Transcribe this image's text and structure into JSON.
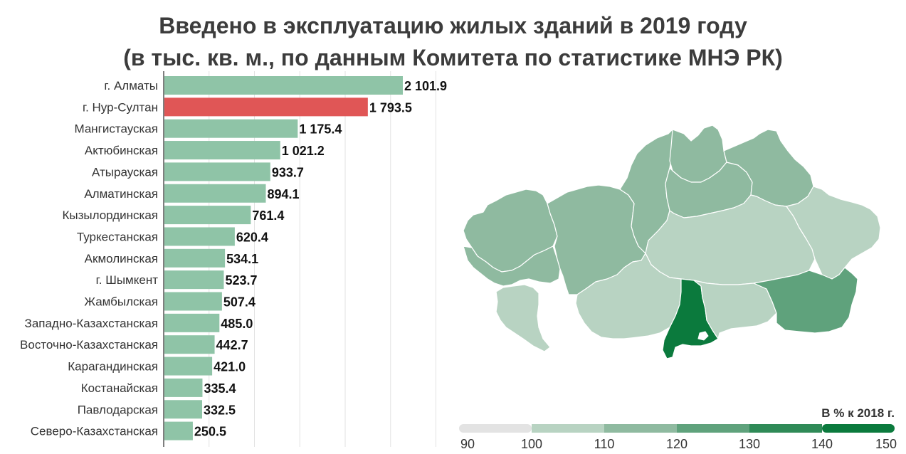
{
  "title_line1": "Введено в эксплуатацию жилых зданий в 2019 году",
  "title_line2": "(в тыс. кв. м., по данным Комитета по статистике МНЭ РК)",
  "chart_data": {
    "type": "bar",
    "orientation": "horizontal",
    "categories": [
      "г. Алматы",
      "г. Нур-Султан",
      "Мангистауская",
      "Актюбинская",
      "Атырауская",
      "Алматинская",
      "Кызылординская",
      "Туркестанская",
      "Акмолинская",
      "г. Шымкент",
      "Жамбылская",
      "Западно-Казахстанская",
      "Восточно-Казахстанская",
      "Карагандинская",
      "Костанайская",
      "Павлодарская",
      "Северо-Казахстанская"
    ],
    "values": [
      2101.9,
      1793.5,
      1175.4,
      1021.2,
      933.7,
      894.1,
      761.4,
      620.4,
      534.1,
      523.7,
      507.4,
      485.0,
      442.7,
      421.0,
      335.4,
      332.5,
      250.5
    ],
    "value_labels": [
      "2 101.9",
      "1 793.5",
      "1 175.4",
      "1 021.2",
      "933.7",
      "894.1",
      "761.4",
      "620.4",
      "534.1",
      "523.7",
      "507.4",
      "485.0",
      "442.7",
      "421.0",
      "335.4",
      "332.5",
      "250.5"
    ],
    "highlight_index": 1,
    "bar_color": "#8fc4a7",
    "highlight_color": "#e05656",
    "xlim": [
      0,
      2400
    ],
    "grid": true
  },
  "legend": {
    "title": "В % к 2018 г.",
    "ticks": [
      "90",
      "100",
      "110",
      "120",
      "130",
      "140",
      "150"
    ],
    "colors": [
      "#e3e3e3",
      "#b8d3c2",
      "#8fbaa0",
      "#5fa27c",
      "#2f8a57",
      "#0b7a3d"
    ]
  },
  "map": {
    "regions": [
      {
        "name": "Западно-Казахстанская",
        "color": "#8fbaa0"
      },
      {
        "name": "Атырауская",
        "color": "#8fbaa0"
      },
      {
        "name": "Мангистауская",
        "color": "#b8d3c2"
      },
      {
        "name": "Актюбинская",
        "color": "#8fbaa0"
      },
      {
        "name": "Костанайская",
        "color": "#8fbaa0"
      },
      {
        "name": "Северо-Казахстанская",
        "color": "#8fbaa0"
      },
      {
        "name": "Акмолинская",
        "color": "#8fbaa0"
      },
      {
        "name": "Павлодарская",
        "color": "#8fbaa0"
      },
      {
        "name": "Карагандинская",
        "color": "#b8d3c2"
      },
      {
        "name": "Восточно-Казахстанская",
        "color": "#b8d3c2"
      },
      {
        "name": "Кызылординская",
        "color": "#b8d3c2"
      },
      {
        "name": "Туркестанская",
        "color": "#0b7a3d"
      },
      {
        "name": "Жамбылская",
        "color": "#b8d3c2"
      },
      {
        "name": "Алматинская",
        "color": "#5fa27c"
      }
    ]
  }
}
